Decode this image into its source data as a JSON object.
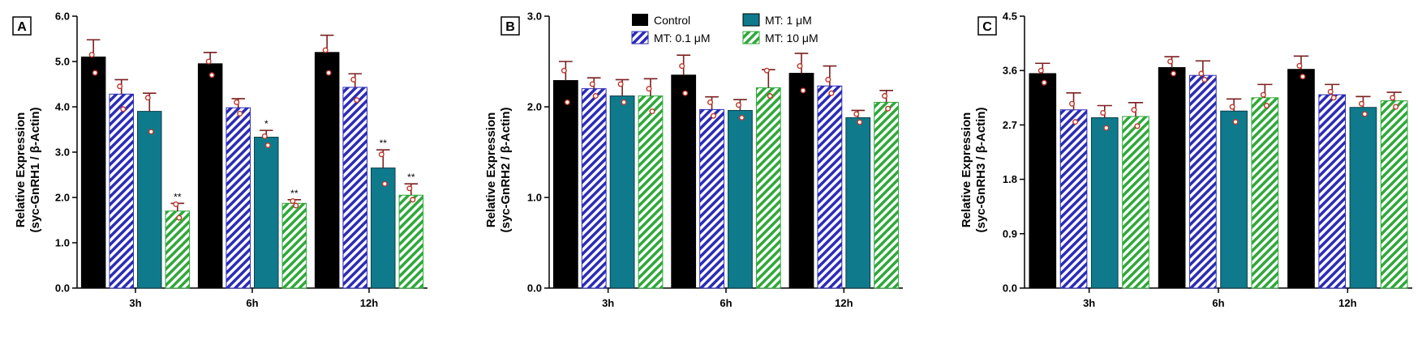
{
  "colors": {
    "control": "#000000",
    "mt_0_1": "#2b2bb8",
    "mt_1": "#0e7a8c",
    "mt_10": "#2fa83a",
    "error_bar": "#7a1f1f",
    "dot": "#c0392b"
  },
  "legend": [
    {
      "name": "Control",
      "style": "solid-black"
    },
    {
      "name": "MT: 0.1 μM",
      "style": "blue-hatch"
    },
    {
      "name": "MT: 1 μM",
      "style": "solid-teal"
    },
    {
      "name": "MT: 10 μM",
      "style": "green-hatch"
    }
  ],
  "chart_data": [
    {
      "panel": "A",
      "type": "bar",
      "ylabel_line1": "Relative Expression",
      "ylabel_line2": "(syc-GnRH1 / β-Actin)",
      "ylim": [
        0,
        6
      ],
      "yticks": [
        "0.0",
        "1.0",
        "2.0",
        "3.0",
        "4.0",
        "5.0",
        "6.0"
      ],
      "ytick_values": [
        0,
        1,
        2,
        3,
        4,
        5,
        6
      ],
      "categories": [
        "3h",
        "6h",
        "12h"
      ],
      "series": [
        {
          "name": "Control",
          "values": [
            5.1,
            4.95,
            5.2
          ],
          "errors": [
            0.38,
            0.25,
            0.38
          ],
          "points": [
            [
              5.15,
              4.75
            ],
            [
              5.0,
              4.7
            ],
            [
              5.25,
              4.75
            ]
          ],
          "sig": [
            "",
            "",
            ""
          ]
        },
        {
          "name": "MT: 0.1 μM",
          "values": [
            4.28,
            3.98,
            4.43
          ],
          "errors": [
            0.32,
            0.2,
            0.3
          ],
          "points": [
            [
              4.45,
              3.95
            ],
            [
              4.1,
              3.85
            ],
            [
              4.6,
              4.15
            ]
          ],
          "sig": [
            "",
            "",
            ""
          ]
        },
        {
          "name": "MT: 1 μM",
          "values": [
            3.9,
            3.33,
            2.65
          ],
          "errors": [
            0.4,
            0.15,
            0.4
          ],
          "points": [
            [
              4.2,
              3.45
            ],
            [
              3.35,
              3.15
            ],
            [
              2.95,
              2.3
            ]
          ],
          "sig": [
            "",
            "*",
            "**"
          ]
        },
        {
          "name": "MT: 10 μM",
          "values": [
            1.7,
            1.87,
            2.05
          ],
          "errors": [
            0.17,
            0.08,
            0.25
          ],
          "points": [
            [
              1.85,
              1.55
            ],
            [
              1.92,
              1.82
            ],
            [
              2.2,
              1.95
            ]
          ],
          "sig": [
            "**",
            "**",
            "**"
          ]
        }
      ]
    },
    {
      "panel": "B",
      "type": "bar",
      "ylabel_line1": "Relative Expression",
      "ylabel_line2": "(syc-GnRH2 / β-Actin)",
      "ylim": [
        0,
        3
      ],
      "yticks": [
        "0.0",
        "1.0",
        "2.0",
        "3.0"
      ],
      "ytick_values": [
        0,
        1,
        2,
        3
      ],
      "categories": [
        "3h",
        "6h",
        "12h"
      ],
      "series": [
        {
          "name": "Control",
          "values": [
            2.29,
            2.35,
            2.37
          ],
          "errors": [
            0.21,
            0.22,
            0.22
          ],
          "points": [
            [
              2.4,
              2.05
            ],
            [
              2.45,
              2.15
            ],
            [
              2.45,
              2.18
            ]
          ],
          "sig": [
            "",
            "",
            ""
          ]
        },
        {
          "name": "MT: 0.1 μM",
          "values": [
            2.2,
            1.97,
            2.23
          ],
          "errors": [
            0.12,
            0.14,
            0.22
          ],
          "points": [
            [
              2.25,
              2.12
            ],
            [
              2.05,
              1.9
            ],
            [
              2.3,
              2.15
            ]
          ],
          "sig": [
            "",
            "",
            ""
          ]
        },
        {
          "name": "MT: 1 μM",
          "values": [
            2.12,
            1.96,
            1.88
          ],
          "errors": [
            0.18,
            0.12,
            0.08
          ],
          "points": [
            [
              2.25,
              2.05
            ],
            [
              2.02,
              1.88
            ],
            [
              1.92,
              1.83
            ]
          ],
          "sig": [
            "",
            "",
            ""
          ]
        },
        {
          "name": "MT: 10 μM",
          "values": [
            2.12,
            2.21,
            2.05
          ],
          "errors": [
            0.19,
            0.2,
            0.13
          ],
          "points": [
            [
              2.2,
              1.95
            ],
            [
              2.4,
              2.12
            ],
            [
              2.12,
              1.98
            ]
          ],
          "sig": [
            "",
            "",
            ""
          ]
        }
      ]
    },
    {
      "panel": "C",
      "type": "bar",
      "ylabel_line1": "Relative Expression",
      "ylabel_line2": "(syc-GnRH3 / β-Actin)",
      "ylim": [
        0,
        4.5
      ],
      "yticks": [
        "0.0",
        "0.9",
        "1.8",
        "2.7",
        "3.6",
        "4.5"
      ],
      "ytick_values": [
        0,
        0.9,
        1.8,
        2.7,
        3.6,
        4.5
      ],
      "categories": [
        "3h",
        "6h",
        "12h"
      ],
      "series": [
        {
          "name": "Control",
          "values": [
            3.55,
            3.65,
            3.62
          ],
          "errors": [
            0.17,
            0.18,
            0.22
          ],
          "points": [
            [
              3.6,
              3.4
            ],
            [
              3.75,
              3.55
            ],
            [
              3.68,
              3.5
            ]
          ],
          "sig": [
            "",
            "",
            ""
          ]
        },
        {
          "name": "MT: 0.1 μM",
          "values": [
            2.95,
            3.52,
            3.2
          ],
          "errors": [
            0.28,
            0.24,
            0.17
          ],
          "points": [
            [
              3.05,
              2.75
            ],
            [
              3.55,
              3.45
            ],
            [
              3.25,
              3.15
            ]
          ],
          "sig": [
            "",
            "",
            ""
          ]
        },
        {
          "name": "MT: 1 μM",
          "values": [
            2.82,
            2.93,
            2.99
          ],
          "errors": [
            0.2,
            0.2,
            0.18
          ],
          "points": [
            [
              2.9,
              2.65
            ],
            [
              3.0,
              2.75
            ],
            [
              3.05,
              2.88
            ]
          ],
          "sig": [
            "",
            "",
            ""
          ]
        },
        {
          "name": "MT: 10 μM",
          "values": [
            2.84,
            3.15,
            3.1
          ],
          "errors": [
            0.23,
            0.22,
            0.14
          ],
          "points": [
            [
              2.95,
              2.68
            ],
            [
              3.2,
              3.02
            ],
            [
              3.15,
              3.0
            ]
          ],
          "sig": [
            "",
            "",
            ""
          ]
        }
      ]
    }
  ]
}
